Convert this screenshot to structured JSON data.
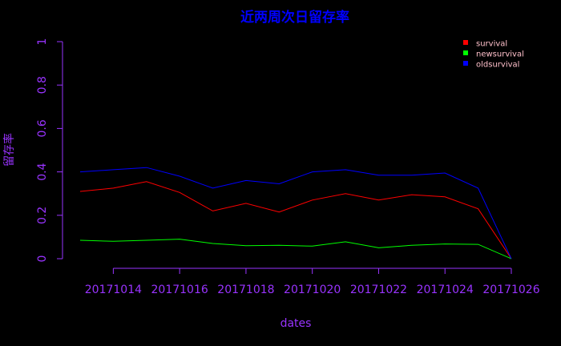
{
  "chart_data": {
    "type": "line",
    "title": "近两周次日留存率",
    "xlabel": "dates",
    "ylabel": "留存率",
    "x": [
      "20171013",
      "20171014",
      "20171015",
      "20171016",
      "20171017",
      "20171018",
      "20171019",
      "20171020",
      "20171021",
      "20171022",
      "20171023",
      "20171024",
      "20171025",
      "20171026"
    ],
    "x_tick_labels": [
      "20171014",
      "20171016",
      "20171018",
      "20171020",
      "20171022",
      "20171024",
      "20171026"
    ],
    "y_ticks": [
      "0",
      "0.2",
      "0.4",
      "0.6",
      "0.8",
      "1"
    ],
    "ylim": [
      0,
      1
    ],
    "grid": false,
    "legend_position": "top-right",
    "series": [
      {
        "name": "survival",
        "color": "#ff0000",
        "values": [
          0.31,
          0.325,
          0.355,
          0.305,
          0.22,
          0.255,
          0.215,
          0.27,
          0.3,
          0.27,
          0.295,
          0.285,
          0.23,
          0.0
        ]
      },
      {
        "name": "newsurvival",
        "color": "#00ff00",
        "values": [
          0.085,
          0.08,
          0.085,
          0.09,
          0.07,
          0.06,
          0.062,
          0.058,
          0.078,
          0.05,
          0.062,
          0.068,
          0.066,
          0.0
        ]
      },
      {
        "name": "oldsurvival",
        "color": "#0000ff",
        "values": [
          0.4,
          0.41,
          0.42,
          0.38,
          0.325,
          0.36,
          0.345,
          0.4,
          0.41,
          0.385,
          0.385,
          0.395,
          0.325,
          0.0
        ]
      }
    ]
  },
  "colors": {
    "background": "#000000",
    "title": "#0000ff",
    "axis": "#9933ff",
    "legend_text": "#ffc0cb"
  }
}
